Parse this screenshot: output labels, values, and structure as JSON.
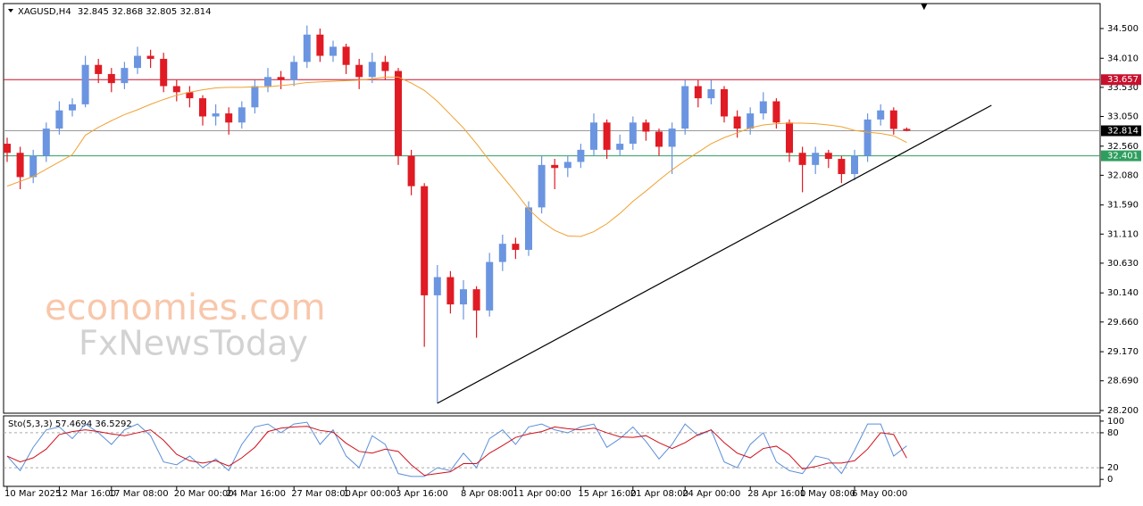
{
  "chart_data": {
    "type": "candlestick",
    "title": "XAGUSD,H4",
    "categories": [
      "10 Mar 2025",
      null,
      null,
      null,
      "12 Mar 16:00",
      null,
      null,
      null,
      "17 Mar 08:00",
      null,
      null,
      null,
      null,
      "20 Mar 00:00",
      null,
      null,
      null,
      "24 Mar 16:00",
      null,
      null,
      null,
      null,
      "27 Mar 08:00",
      null,
      null,
      null,
      "1 Apr 00:00",
      null,
      null,
      null,
      "3 Apr 16:00",
      null,
      null,
      null,
      null,
      "8 Apr 08:00",
      null,
      null,
      null,
      "11 Apr 00:00",
      null,
      null,
      null,
      null,
      "15 Apr 16:00",
      null,
      null,
      null,
      "21 Apr 08:00",
      null,
      null,
      null,
      "24 Apr 00:00",
      null,
      null,
      null,
      null,
      "28 Apr 16:00",
      null,
      null,
      null,
      "1 May 08:00",
      null,
      null,
      null,
      "6 May 00:00",
      null,
      null,
      null,
      null
    ],
    "open": [
      32.6,
      32.45,
      32.05,
      32.4,
      32.85,
      33.15,
      33.25,
      33.9,
      33.75,
      33.6,
      33.85,
      34.05,
      34,
      33.55,
      33.45,
      33.35,
      33.05,
      33.1,
      32.95,
      33.2,
      33.55,
      33.7,
      33.65,
      33.95,
      34.4,
      34.05,
      34.2,
      33.9,
      33.7,
      33.95,
      33.8,
      32.4,
      31.9,
      30.1,
      30.4,
      29.95,
      30.2,
      29.85,
      30.65,
      30.95,
      30.85,
      31.55,
      32.25,
      32.2,
      32.3,
      32.5,
      32.95,
      32.5,
      32.6,
      32.95,
      32.8,
      32.55,
      32.85,
      33.55,
      33.35,
      33.5,
      33.05,
      32.85,
      33.1,
      33.3,
      32.95,
      32.45,
      32.25,
      32.45,
      32.35,
      32.1,
      32.4,
      33,
      33.15,
      32.845
    ],
    "high": [
      32.7,
      32.55,
      32.5,
      32.95,
      33.3,
      33.35,
      34.05,
      34.0,
      33.85,
      33.95,
      34.2,
      34.15,
      34.1,
      33.65,
      33.55,
      33.4,
      33.25,
      33.2,
      33.3,
      33.65,
      33.85,
      33.8,
      34.05,
      34.55,
      34.5,
      34.3,
      34.25,
      34.0,
      34.1,
      34.05,
      33.85,
      32.5,
      31.95,
      30.6,
      30.5,
      30.35,
      30.25,
      30.8,
      31.1,
      31.05,
      31.65,
      32.4,
      32.35,
      32.4,
      32.6,
      33.1,
      33.0,
      32.75,
      33.05,
      33.0,
      32.85,
      32.95,
      33.65,
      33.65,
      33.65,
      33.55,
      33.15,
      33.2,
      33.45,
      33.35,
      33.0,
      32.55,
      32.55,
      32.5,
      32.4,
      32.5,
      33.1,
      33.25,
      33.2,
      32.868
    ],
    "low": [
      32.3,
      31.85,
      31.95,
      32.3,
      32.75,
      33.05,
      33.2,
      33.6,
      33.45,
      33.5,
      33.75,
      33.85,
      33.45,
      33.3,
      33.2,
      32.9,
      32.9,
      32.75,
      32.85,
      33.1,
      33.45,
      33.5,
      33.55,
      33.85,
      33.95,
      33.95,
      33.75,
      33.5,
      33.6,
      33.65,
      32.25,
      31.75,
      29.25,
      28.32,
      29.8,
      29.7,
      29.4,
      29.75,
      30.5,
      30.7,
      30.75,
      31.45,
      31.85,
      32.05,
      32.2,
      32.4,
      32.35,
      32.4,
      32.5,
      32.65,
      32.4,
      32.1,
      32.75,
      33.2,
      33.25,
      32.95,
      32.7,
      32.75,
      33.0,
      32.85,
      32.3,
      31.8,
      32.1,
      32.2,
      31.95,
      32.0,
      32.3,
      32.9,
      32.75,
      32.805
    ],
    "close": [
      32.45,
      32.05,
      32.4,
      32.85,
      33.15,
      33.25,
      33.9,
      33.75,
      33.6,
      33.85,
      34.05,
      34,
      33.55,
      33.45,
      33.35,
      33.05,
      33.1,
      32.95,
      33.2,
      33.55,
      33.7,
      33.65,
      33.95,
      34.4,
      34.05,
      34.2,
      33.9,
      33.7,
      33.95,
      33.8,
      32.4,
      31.9,
      30.1,
      30.4,
      29.95,
      30.2,
      29.85,
      30.65,
      30.95,
      30.85,
      31.55,
      32.25,
      32.2,
      32.3,
      32.5,
      32.95,
      32.5,
      32.6,
      32.95,
      32.8,
      32.55,
      32.85,
      33.55,
      33.35,
      33.5,
      33.05,
      32.85,
      33.1,
      33.3,
      32.95,
      32.45,
      32.25,
      32.45,
      32.35,
      32.1,
      32.4,
      33,
      33.15,
      32.845,
      32.814
    ],
    "up_color": "#6b95e0",
    "down_color": "#e01b24",
    "ma": {
      "color": "#f0a133",
      "values": [
        31.9,
        31.98,
        32.06,
        32.18,
        32.3,
        32.42,
        32.74,
        32.87,
        32.98,
        33.08,
        33.16,
        33.25,
        33.33,
        33.4,
        33.45,
        33.49,
        33.52,
        33.53,
        33.53,
        33.54,
        33.54,
        33.56,
        33.58,
        33.61,
        33.62,
        33.63,
        33.64,
        33.65,
        33.67,
        33.7,
        33.7,
        33.6,
        33.48,
        33.3,
        33.08,
        32.86,
        32.6,
        32.32,
        32.06,
        31.8,
        31.52,
        31.32,
        31.17,
        31.08,
        31.07,
        31.15,
        31.28,
        31.45,
        31.65,
        31.82,
        32.0,
        32.17,
        32.32,
        32.46,
        32.6,
        32.7,
        32.78,
        32.86,
        32.91,
        32.93,
        32.94,
        32.94,
        32.93,
        32.91,
        32.88,
        32.82,
        32.79,
        32.77,
        32.73,
        32.62
      ]
    },
    "levels": [
      {
        "value": 33.657,
        "color": "#c8102e"
      },
      {
        "value": 32.401,
        "color": "#2e9e5e"
      }
    ],
    "current_color": "#9a9a9a",
    "trendline": {
      "x": [
        33,
        75.5
      ],
      "y": [
        28.32,
        33.234
      ],
      "color": "#000000"
    },
    "ylim": [
      28.156,
      34.897
    ],
    "yticks": [
      {
        "value": 34.5,
        "label": "34.500"
      },
      {
        "value": 34.01,
        "label": "34.010"
      },
      {
        "value": 33.53,
        "label": "33.530"
      },
      {
        "value": 33.05,
        "label": "33.050"
      },
      {
        "value": 32.56,
        "label": "32.560"
      },
      {
        "value": 32.08,
        "label": "32.080"
      },
      {
        "value": 31.59,
        "label": "31.590"
      },
      {
        "value": 31.11,
        "label": "31.110"
      },
      {
        "value": 30.63,
        "label": "30.630"
      },
      {
        "value": 30.14,
        "label": "30.140"
      },
      {
        "value": 29.66,
        "label": "29.660"
      },
      {
        "value": 29.17,
        "label": "29.170"
      },
      {
        "value": 28.69,
        "label": "28.690"
      },
      {
        "value": 28.2,
        "label": "28.200"
      }
    ],
    "watermark": [
      "economies.com",
      "FxNewsToday"
    ],
    "stochastic": {
      "label": "Sto(5,3,3)",
      "main": {
        "color": "#5b8fd8",
        "values": [
          40,
          15,
          55,
          85,
          90,
          70,
          95,
          80,
          60,
          85,
          95,
          75,
          30,
          25,
          40,
          20,
          35,
          15,
          60,
          90,
          95,
          80,
          95,
          98,
          60,
          85,
          40,
          20,
          75,
          60,
          10,
          5,
          5,
          20,
          15,
          45,
          20,
          70,
          85,
          60,
          90,
          95,
          85,
          80,
          90,
          95,
          55,
          70,
          90,
          65,
          35,
          60,
          95,
          75,
          85,
          30,
          20,
          60,
          80,
          30,
          15,
          10,
          40,
          35,
          10,
          50,
          95,
          95,
          40,
          57.4694
        ]
      },
      "signal": {
        "color": "#d0101a",
        "values": [
          40,
          30,
          37,
          52,
          77,
          82,
          85,
          82,
          78,
          75,
          80,
          85,
          67,
          43,
          32,
          28,
          32,
          23,
          37,
          55,
          82,
          88,
          90,
          91,
          84,
          81,
          62,
          48,
          45,
          52,
          48,
          25,
          7,
          10,
          13,
          27,
          27,
          45,
          58,
          72,
          78,
          82,
          90,
          87,
          85,
          88,
          80,
          73,
          72,
          75,
          63,
          53,
          63,
          77,
          85,
          63,
          45,
          37,
          53,
          57,
          42,
          18,
          22,
          28,
          28,
          32,
          52,
          80,
          77,
          36.5292
        ]
      },
      "ylim": [
        -12,
        109
      ],
      "yticks": [
        100,
        80,
        20,
        0
      ],
      "levels": [
        80,
        20
      ]
    }
  }
}
